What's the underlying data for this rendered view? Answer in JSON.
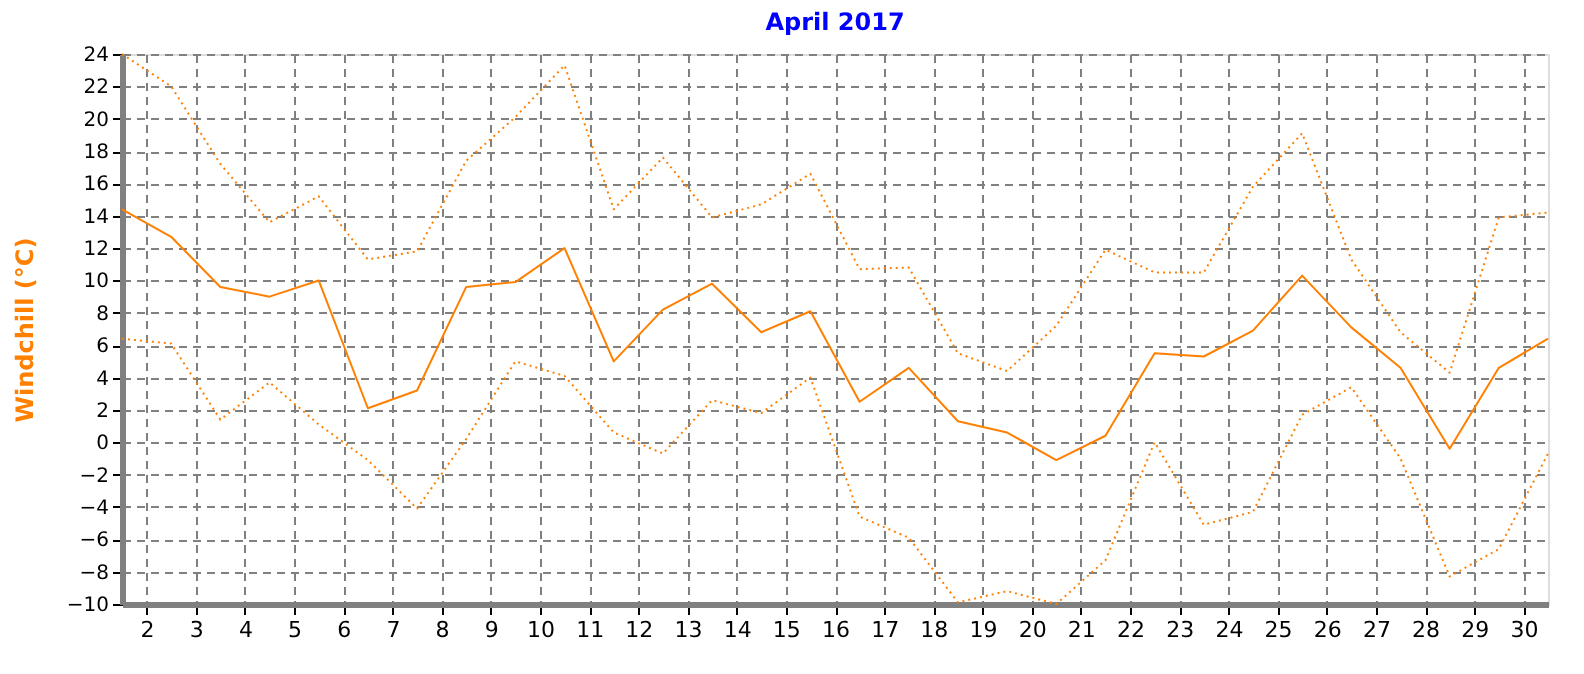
{
  "chart_data": {
    "type": "line",
    "title": "April 2017",
    "ylabel": "Windchill  (°C)",
    "x": [
      1.5,
      2.5,
      3.5,
      4.5,
      5.5,
      6.5,
      7.5,
      8.5,
      9.5,
      10.5,
      11.5,
      12.5,
      13.5,
      14.5,
      15.5,
      16.5,
      17.5,
      18.5,
      19.5,
      20.5,
      21.5,
      22.5,
      23.5,
      24.5,
      25.5,
      26.5,
      27.5,
      28.5,
      29.5,
      30.5
    ],
    "series": [
      {
        "color": "#ff8000",
        "line_style": "dotted",
        "values": [
          24.0,
          22.0,
          17.2,
          13.6,
          15.2,
          11.3,
          11.8,
          17.4,
          20.1,
          23.3,
          14.4,
          17.6,
          13.9,
          14.7,
          16.6,
          10.7,
          10.8,
          5.5,
          4.4,
          7.2,
          11.9,
          10.5,
          10.5,
          15.8,
          19.1,
          11.3,
          6.8,
          4.3,
          13.9,
          14.2
        ]
      },
      {
        "color": "#ff8000",
        "line_style": "solid",
        "values": [
          14.4,
          12.7,
          9.6,
          9.0,
          10.0,
          2.1,
          3.2,
          9.6,
          9.9,
          12.0,
          5.0,
          8.2,
          9.8,
          6.8,
          8.1,
          2.5,
          4.6,
          1.3,
          0.6,
          -1.1,
          0.4,
          5.5,
          5.3,
          6.9,
          10.3,
          7.1,
          4.6,
          -0.4,
          4.6,
          6.4
        ]
      },
      {
        "color": "#ff8000",
        "line_style": "dotted",
        "values": [
          6.4,
          6.1,
          1.4,
          3.7,
          1.1,
          -1.1,
          -4.1,
          0.2,
          5.0,
          4.1,
          0.6,
          -0.7,
          2.6,
          1.8,
          4.0,
          -4.6,
          -5.9,
          -9.9,
          -9.2,
          -10.0,
          -7.3,
          0.0,
          -5.1,
          -4.3,
          1.7,
          3.4,
          -1.0,
          -8.3,
          -6.6,
          -0.7
        ]
      }
    ],
    "xlim": [
      1.5,
      30.5
    ],
    "xticks": [
      2,
      3,
      4,
      5,
      6,
      7,
      8,
      9,
      10,
      11,
      12,
      13,
      14,
      15,
      16,
      17,
      18,
      19,
      20,
      21,
      22,
      23,
      24,
      25,
      26,
      27,
      28,
      29,
      30
    ],
    "ylim": [
      -10,
      24
    ],
    "yticks": [
      -10,
      -8,
      -6,
      -4,
      -2,
      0,
      2,
      4,
      6,
      8,
      10,
      12,
      14,
      16,
      18,
      20,
      22,
      24
    ],
    "grid": true,
    "marker": "none"
  }
}
